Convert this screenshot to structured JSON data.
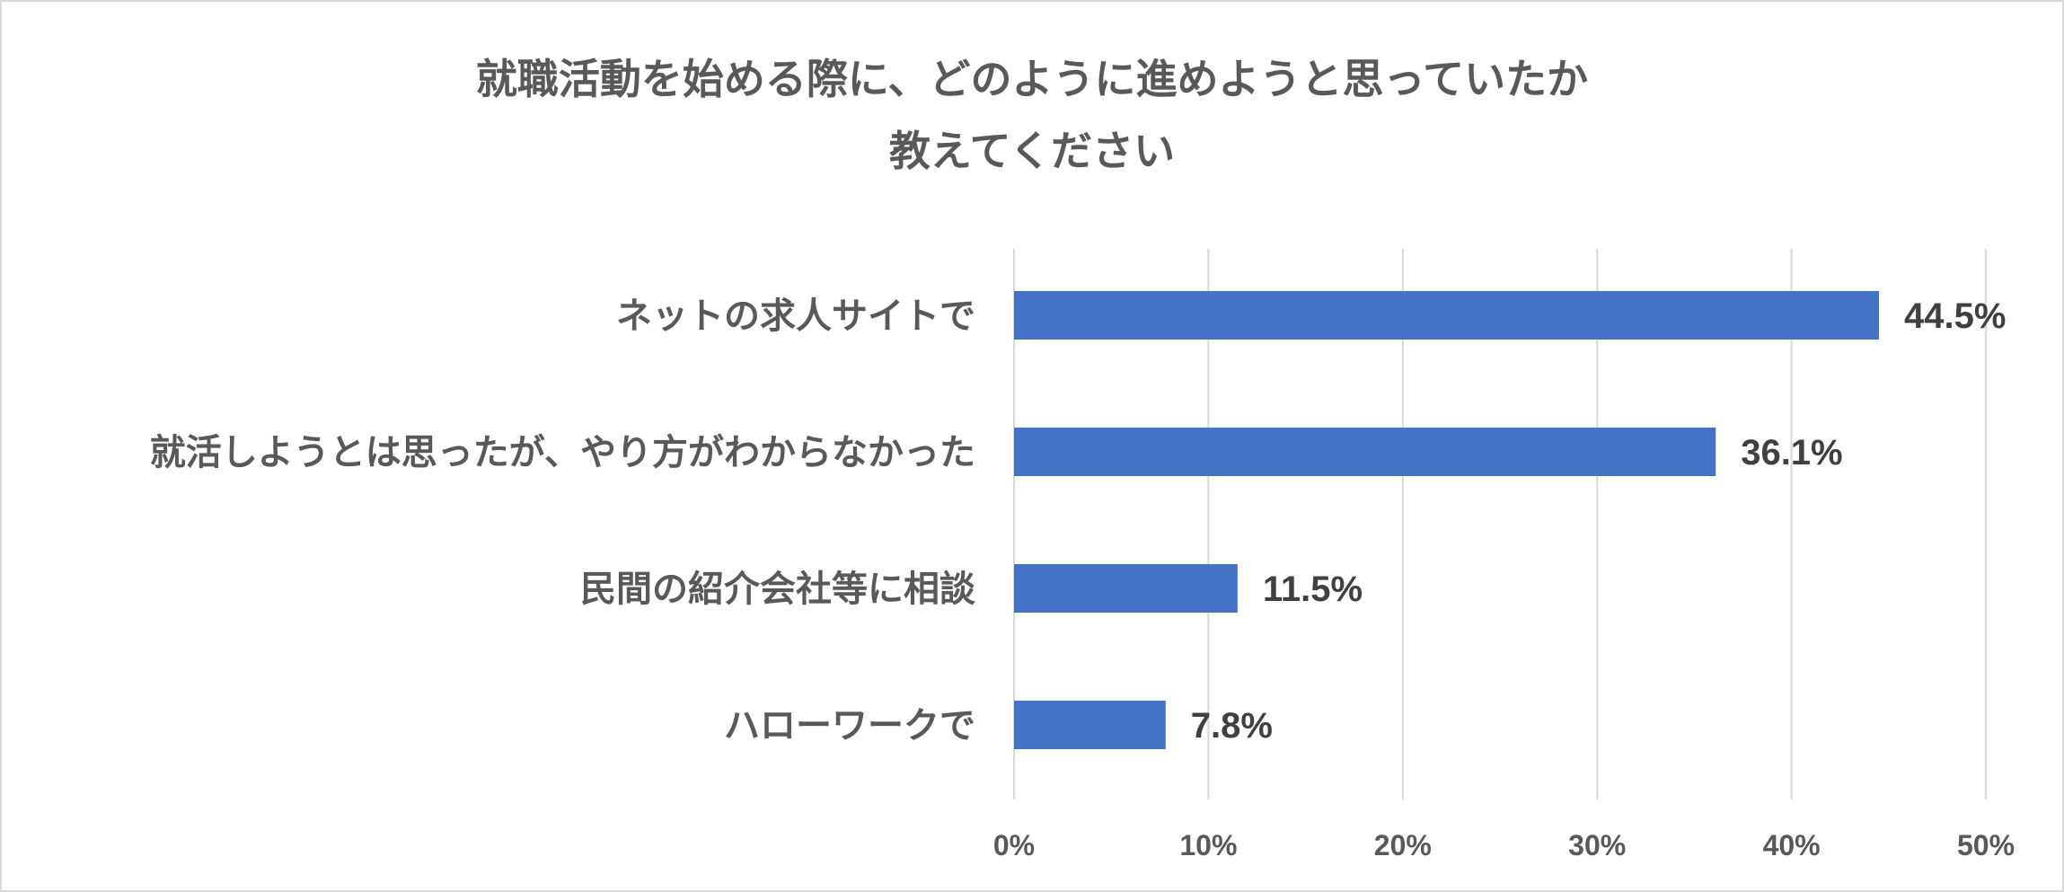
{
  "chart_data": {
    "type": "bar",
    "orientation": "horizontal",
    "title_line1": "就職活動を始める際に、どのように進めようと思っていたか",
    "title_line2": "教えてください",
    "categories": [
      "ネットの求人サイトで",
      "就活しようとは思ったが、やり方がわからなかった",
      "民間の紹介会社等に相談",
      "ハローワークで"
    ],
    "values": [
      44.5,
      36.1,
      11.5,
      7.8
    ],
    "value_labels": [
      "44.5%",
      "36.1%",
      "11.5%",
      "7.8%"
    ],
    "x_ticks": [
      0,
      10,
      20,
      30,
      40,
      50
    ],
    "x_tick_labels": [
      "0%",
      "10%",
      "20%",
      "30%",
      "40%",
      "50%"
    ],
    "xlim": [
      0,
      50
    ],
    "grid": "vertical",
    "bar_color": "#4472C4",
    "grid_color": "#d9d9d9"
  }
}
